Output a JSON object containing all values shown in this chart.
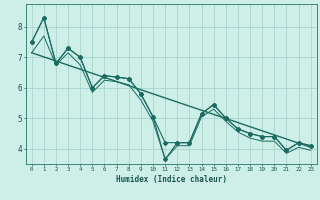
{
  "xlabel": "Humidex (Indice chaleur)",
  "background_color": "#ceeee8",
  "grid_color": "#aad4ce",
  "line_color": "#1a6b60",
  "xlim": [
    -0.5,
    23.5
  ],
  "ylim": [
    3.5,
    8.75
  ],
  "yticks": [
    4,
    5,
    6,
    7,
    8
  ],
  "xticks": [
    0,
    1,
    2,
    3,
    4,
    5,
    6,
    7,
    8,
    9,
    10,
    11,
    12,
    13,
    14,
    15,
    16,
    17,
    18,
    19,
    20,
    21,
    22,
    23
  ],
  "series1_x": [
    0,
    1,
    2,
    3,
    4,
    5,
    6,
    7,
    8,
    9,
    10,
    11,
    12,
    13,
    14,
    15,
    16,
    17,
    18,
    19,
    20,
    21,
    22,
    23
  ],
  "series1_y": [
    7.5,
    8.3,
    6.8,
    7.3,
    7.0,
    6.0,
    6.4,
    6.35,
    6.3,
    5.8,
    5.05,
    4.2,
    4.2,
    4.2,
    5.15,
    5.45,
    5.0,
    4.65,
    4.5,
    4.4,
    4.4,
    3.95,
    4.2,
    4.1
  ],
  "series2_x": [
    0,
    1,
    2,
    3,
    4,
    5,
    6,
    7,
    8,
    9,
    10,
    11,
    12,
    13,
    14,
    15,
    16,
    17,
    18,
    19,
    20,
    21,
    22,
    23
  ],
  "series2_y": [
    7.5,
    8.3,
    6.8,
    7.3,
    7.0,
    6.0,
    6.4,
    6.35,
    6.3,
    5.8,
    5.05,
    3.65,
    4.2,
    4.2,
    5.15,
    5.45,
    5.0,
    4.65,
    4.5,
    4.4,
    4.4,
    3.95,
    4.2,
    4.1
  ],
  "series3_x": [
    0,
    23
  ],
  "series3_y": [
    7.15,
    4.05
  ],
  "series4_x": [
    0,
    1,
    2,
    3,
    4,
    5,
    6,
    7,
    8,
    9,
    10,
    11,
    12,
    13,
    14,
    15,
    16,
    17,
    18,
    19,
    20,
    21,
    22,
    23
  ],
  "series4_y": [
    7.15,
    7.7,
    6.75,
    7.15,
    6.75,
    5.85,
    6.25,
    6.2,
    6.1,
    5.6,
    4.9,
    3.65,
    4.1,
    4.1,
    5.05,
    5.3,
    4.9,
    4.55,
    4.35,
    4.25,
    4.25,
    3.85,
    4.05,
    3.95
  ]
}
